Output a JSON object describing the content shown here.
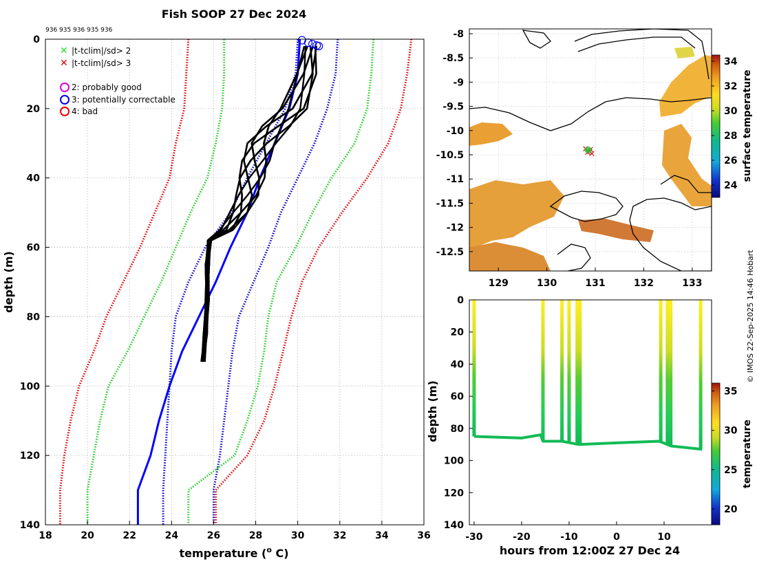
{
  "title": "Fish SOOP 27 Dec 2024",
  "id_row": "936 935 936 935 936",
  "credit": "© IMOS 22-Sep-2025 14:46 Hobart",
  "profile_panel": {
    "xlabel": "temperature (",
    "xlabel_unit": "o",
    "xlabel_end": " C)",
    "ylabel": "depth (m)",
    "xlim": [
      18,
      36
    ],
    "ylim": [
      0,
      140
    ],
    "xticks": [
      "18",
      "20",
      "22",
      "24",
      "26",
      "28",
      "30",
      "32",
      "34",
      "36"
    ],
    "yticks": [
      "0",
      "20",
      "40",
      "60",
      "80",
      "100",
      "120",
      "140"
    ],
    "legend": [
      {
        "label": "|t-tclim|/sd> 2",
        "marker": "x",
        "color": "#22dd22"
      },
      {
        "label": "|t-tclim|/sd> 3",
        "marker": "x",
        "color": "#dd0000"
      },
      {
        "label": "2: probably good",
        "marker": "o",
        "color": "#dd00dd"
      },
      {
        "label": "3: potentially correctable",
        "marker": "o",
        "color": "#0000ee"
      },
      {
        "label": "4: bad",
        "marker": "o",
        "color": "#ee0000"
      }
    ]
  },
  "map_panel": {
    "colorbar_label": "surface temperature",
    "colorbar_ticks": [
      "24",
      "26",
      "28",
      "30",
      "32",
      "34"
    ],
    "colorbar_range": [
      23,
      34.5
    ],
    "xlim": [
      128.4,
      133.4
    ],
    "ylim": [
      -12.9,
      -7.9
    ],
    "xticks": [
      "129",
      "130",
      "131",
      "132",
      "133"
    ],
    "yticks": [
      "-8",
      "-8.5",
      "-9",
      "-9.5",
      "-10",
      "-10.5",
      "-11",
      "-11.5",
      "-12",
      "-12.5"
    ],
    "profile_location": {
      "lon": 130.85,
      "lat": -10.4
    }
  },
  "time_panel": {
    "xlabel": "hours from 12:00Z 27 Dec 24",
    "ylabel": "depth (m)",
    "colorbar_label": "temperature",
    "colorbar_ticks": [
      "20",
      "25",
      "30",
      "35"
    ],
    "colorbar_range": [
      18,
      36
    ],
    "xlim": [
      -31,
      20
    ],
    "ylim": [
      0,
      140
    ],
    "xticks": [
      "-30",
      "-20",
      "-10",
      "0",
      "10"
    ],
    "yticks": [
      "0",
      "20",
      "40",
      "60",
      "80",
      "100",
      "120",
      "140"
    ]
  },
  "chart_data": [
    {
      "type": "line",
      "title": "Fish SOOP 27 Dec 2024",
      "xlabel": "temperature (o C)",
      "ylabel": "depth (m)",
      "xlim": [
        18,
        36
      ],
      "ylim": [
        0,
        140
      ],
      "y_reversed": true,
      "depth": [
        0,
        10,
        20,
        30,
        40,
        50,
        60,
        70,
        80,
        90,
        100,
        110,
        120,
        130,
        140
      ],
      "series": [
        {
          "name": "climatology mean",
          "color": "#0000ff",
          "style": "solid",
          "values": [
            30.1,
            30.0,
            29.6,
            28.9,
            28.2,
            27.6,
            26.8,
            26.1,
            25.3,
            24.5,
            23.9,
            23.4,
            23.0,
            22.4,
            22.4
          ]
        },
        {
          "name": "mean - 1 sd",
          "color": "#0000cc",
          "style": "dotted",
          "values": [
            30.0,
            29.9,
            29.4,
            28.5,
            27.6,
            26.8,
            25.6,
            24.8,
            24.2,
            24.0,
            23.9,
            23.8,
            23.7,
            23.6,
            23.6
          ]
        },
        {
          "name": "mean + 1 sd",
          "color": "#0000cc",
          "style": "dotted",
          "values": [
            31.9,
            31.8,
            31.4,
            30.8,
            30.0,
            29.2,
            28.6,
            27.9,
            27.2,
            26.9,
            26.7,
            26.5,
            26.3,
            26.0,
            26.0
          ]
        },
        {
          "name": "mean - 2 sd",
          "color": "#22cc22",
          "style": "dotted",
          "values": [
            26.5,
            26.5,
            26.4,
            26.1,
            25.7,
            24.9,
            24.2,
            23.5,
            22.7,
            21.9,
            21.0,
            20.6,
            20.3,
            20.0,
            20.0
          ]
        },
        {
          "name": "mean + 2 sd",
          "color": "#22cc22",
          "style": "dotted",
          "values": [
            33.6,
            33.5,
            33.3,
            32.7,
            31.6,
            30.7,
            29.9,
            29.0,
            28.6,
            28.4,
            28.1,
            27.6,
            27.0,
            24.8,
            24.8
          ]
        },
        {
          "name": "mean - 3 sd",
          "color": "#dd0000",
          "style": "dotted",
          "values": [
            24.8,
            24.7,
            24.6,
            24.2,
            23.9,
            23.2,
            22.5,
            21.7,
            20.9,
            20.3,
            19.6,
            19.2,
            18.9,
            18.7,
            18.7
          ]
        },
        {
          "name": "mean + 3 sd",
          "color": "#dd0000",
          "style": "dotted",
          "values": [
            35.4,
            35.2,
            34.9,
            34.3,
            33.3,
            32.1,
            31.0,
            30.2,
            29.7,
            29.3,
            28.9,
            28.4,
            27.6,
            26.1,
            26.1
          ]
        }
      ],
      "profiles": {
        "color": "#000000",
        "count": 12,
        "depth": [
          2,
          10,
          20,
          25,
          30,
          35,
          40,
          45,
          50,
          55,
          58,
          65,
          75,
          85,
          93
        ],
        "base_temperature": [
          30.6,
          30.4,
          29.8,
          29.0,
          28.3,
          28.0,
          27.8,
          27.6,
          27.2,
          26.6,
          25.8,
          25.7,
          25.7,
          25.6,
          25.5
        ]
      },
      "qc_flags": {
        "marker": "o",
        "color": "#0000ee",
        "points": [
          {
            "temperature": 30.2,
            "depth": 0.3
          },
          {
            "temperature": 30.5,
            "depth": 1.0
          },
          {
            "temperature": 30.7,
            "depth": 1.4
          },
          {
            "temperature": 30.9,
            "depth": 1.8
          },
          {
            "temperature": 31.0,
            "depth": 2.0
          }
        ]
      }
    },
    {
      "type": "heatmap",
      "title": "",
      "xlabel": "",
      "ylabel": "",
      "xlim": [
        128.4,
        133.4
      ],
      "ylim": [
        -12.9,
        -7.9
      ],
      "colorbar": "surface temperature",
      "colorbar_range": [
        23,
        34.5
      ],
      "typical_value": 31.5,
      "profile_location": {
        "lon": 130.85,
        "lat": -10.4
      }
    },
    {
      "type": "scatter",
      "title": "",
      "xlabel": "hours from 12:00Z 27 Dec 24",
      "ylabel": "depth (m)",
      "xlim": [
        -31,
        20
      ],
      "ylim": [
        0,
        140
      ],
      "y_reversed": true,
      "colorbar": "temperature",
      "colorbar_range": [
        18,
        36
      ],
      "cast_hours": [
        -30.0,
        -15.5,
        -11.5,
        -10.0,
        -8.3,
        -7.7,
        9.3,
        10.7,
        11.4,
        17.7
      ],
      "bottom_depth": [
        {
          "hour": -30.0,
          "depth": 85
        },
        {
          "hour": -20.0,
          "depth": 86
        },
        {
          "hour": -16.0,
          "depth": 84
        },
        {
          "hour": -15.5,
          "depth": 88
        },
        {
          "hour": -11.5,
          "depth": 88
        },
        {
          "hour": -8.0,
          "depth": 90
        },
        {
          "hour": 0.0,
          "depth": 89
        },
        {
          "hour": 9.0,
          "depth": 88
        },
        {
          "hour": 11.5,
          "depth": 91
        },
        {
          "hour": 18.0,
          "depth": 93
        }
      ]
    }
  ]
}
